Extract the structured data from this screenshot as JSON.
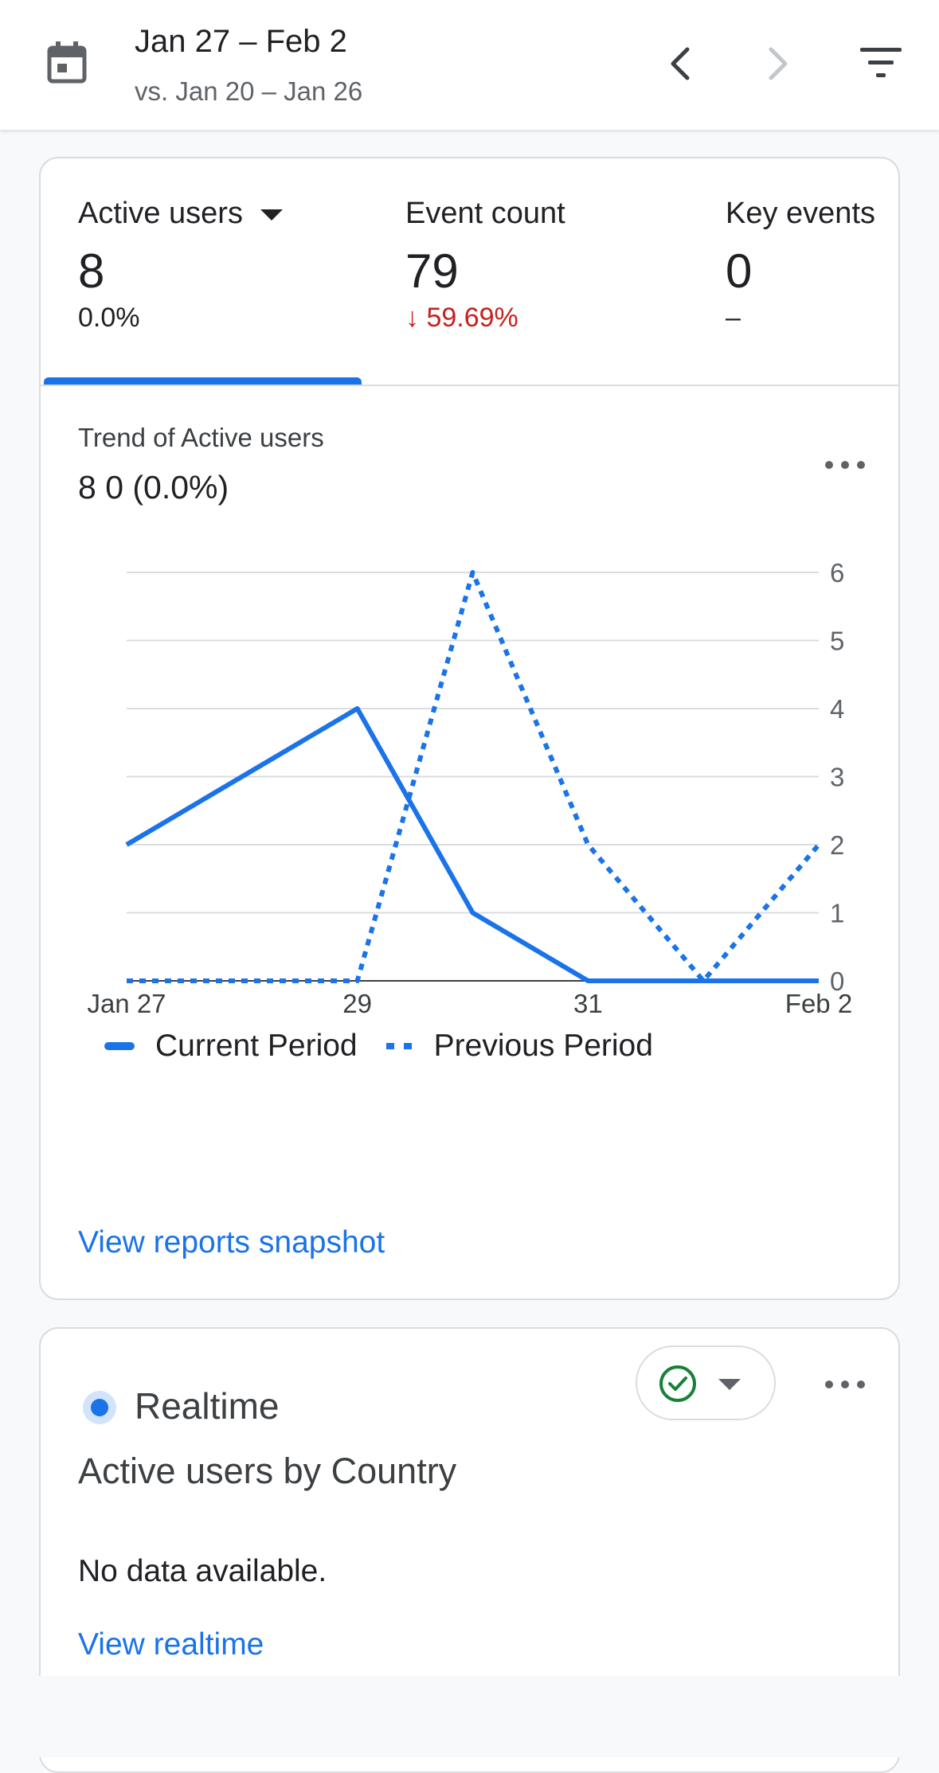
{
  "header": {
    "date_range": "Jan 27 – Feb 2",
    "comparison": "vs. Jan 20 – Jan 26",
    "icons": {
      "calendar": "calendar-icon",
      "prev": "chevron-left-icon",
      "next": "chevron-right-icon",
      "filter": "filter-icon"
    }
  },
  "metrics": [
    {
      "label": "Active users",
      "value": "8",
      "change": "0.0%",
      "selected": true
    },
    {
      "label": "Event count",
      "value": "79",
      "change": "↓ 59.69%",
      "change_direction": "down"
    },
    {
      "label": "Key events",
      "value": "0",
      "change": "–"
    }
  ],
  "trend": {
    "title": "Trend of Active users",
    "summary": "8 0 (0.0%)"
  },
  "chart_data": {
    "type": "line",
    "x": [
      "Jan 27",
      "Jan 28",
      "Jan 29",
      "Jan 30",
      "Jan 31",
      "Feb 1",
      "Feb 2"
    ],
    "x_tick_labels": [
      "Jan 27",
      "29",
      "31",
      "Feb 2"
    ],
    "series": [
      {
        "name": "Current Period",
        "style": "solid",
        "values": [
          2,
          3,
          4,
          1,
          0,
          0,
          0
        ]
      },
      {
        "name": "Previous Period",
        "style": "dotted",
        "values": [
          0,
          0,
          0,
          6,
          2,
          0,
          2
        ]
      }
    ],
    "y_ticks": [
      0,
      1,
      2,
      3,
      4,
      5,
      6
    ],
    "ylim": [
      0,
      6
    ],
    "y_axis_side": "right",
    "grid": true,
    "legend_position": "bottom",
    "color": "#1a73e8"
  },
  "links": {
    "reports_snapshot": "View reports snapshot",
    "realtime": "View realtime"
  },
  "realtime": {
    "title": "Realtime",
    "subtitle": "Active users by Country",
    "empty_message": "No data available.",
    "status_icon": "check-circle-icon",
    "status_color": "#188038"
  },
  "colors": {
    "accent": "#1a73e8",
    "negative": "#c5221f",
    "positive_check": "#188038"
  }
}
